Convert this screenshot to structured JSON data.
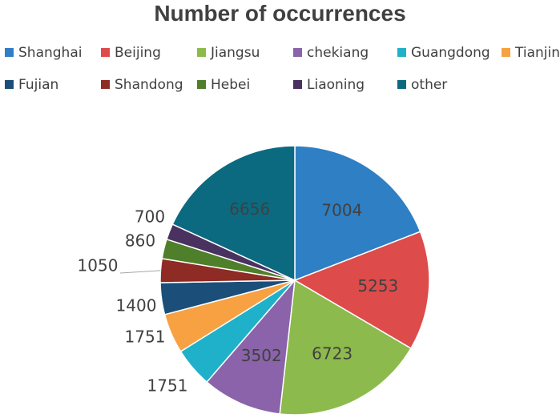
{
  "chart_data": {
    "type": "pie",
    "title": "Number of occurrences",
    "legend_position": "top",
    "categories": [
      "Shanghai",
      "Beijing",
      "Jiangsu",
      "chekiang",
      "Guangdong",
      "Tianjin",
      "Fujian",
      "Shandong",
      "Hebei",
      "Liaoning",
      "other"
    ],
    "values": [
      7004,
      5253,
      6723,
      3502,
      1751,
      1751,
      1400,
      1050,
      860,
      700,
      6656
    ],
    "colors": [
      "#2E7FC4",
      "#DE4B4B",
      "#8DBA4C",
      "#8A63AA",
      "#1FB1C9",
      "#F7A142",
      "#1B4F7A",
      "#8E2B24",
      "#4F7F2A",
      "#4A3260",
      "#0C6A80"
    ]
  }
}
